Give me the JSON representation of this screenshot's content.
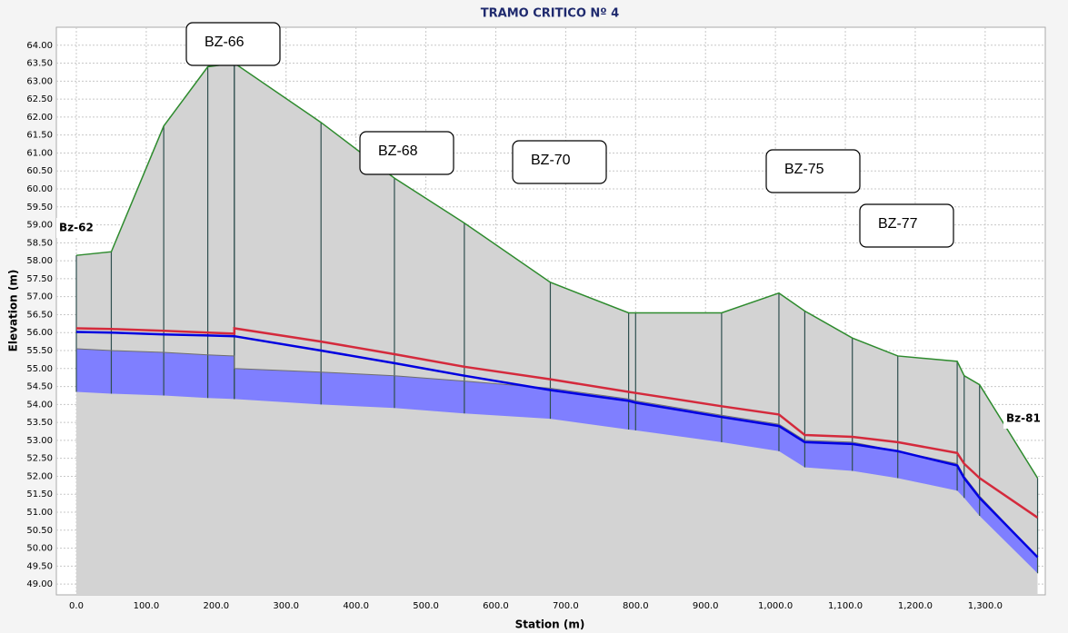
{
  "chart_data": {
    "type": "profile",
    "title": "TRAMO CRITICO Nº 4",
    "xlabel": "Station (m)",
    "ylabel": "Elevation (m)",
    "x": [
      0,
      50,
      125,
      188,
      226,
      226,
      350,
      455,
      555,
      678,
      790,
      800,
      923,
      1005,
      1042,
      1110,
      1175,
      1260,
      1270,
      1292,
      1375
    ],
    "series": [
      {
        "color": "#2e8b2e",
        "values": [
          58.15,
          58.25,
          61.75,
          63.4,
          63.5,
          63.5,
          61.85,
          60.3,
          59.05,
          57.4,
          56.55,
          56.55,
          56.55,
          57.1,
          56.6,
          55.85,
          55.35,
          55.2,
          54.8,
          54.55,
          51.95
        ]
      },
      {
        "color": "#6e6e6e",
        "values": [
          55.55,
          55.5,
          55.45,
          55.38,
          55.35,
          55.0,
          54.9,
          54.8,
          54.65,
          54.45,
          54.15,
          54.1,
          53.7,
          53.45,
          53.0,
          52.95,
          52.7,
          52.35,
          52.0,
          51.45,
          49.75
        ]
      },
      {
        "color": "#7f7fff",
        "values": [
          54.35,
          54.3,
          54.25,
          54.18,
          54.15,
          54.15,
          54.0,
          53.9,
          53.75,
          53.6,
          53.3,
          53.28,
          52.95,
          52.7,
          52.25,
          52.15,
          51.95,
          51.6,
          51.4,
          50.9,
          49.3
        ]
      },
      {
        "color": "#d42a3c",
        "values": [
          56.12,
          56.1,
          56.05,
          56.0,
          55.97,
          56.12,
          55.75,
          55.4,
          55.05,
          54.7,
          54.35,
          54.32,
          53.95,
          53.72,
          53.15,
          53.1,
          52.95,
          52.65,
          52.35,
          51.95,
          50.85
        ]
      },
      {
        "color": "#0000e0",
        "values": [
          56.02,
          56.0,
          55.95,
          55.92,
          55.9,
          55.9,
          55.5,
          55.15,
          54.8,
          54.4,
          54.1,
          54.05,
          53.65,
          53.4,
          52.95,
          52.9,
          52.7,
          52.3,
          51.95,
          51.4,
          49.75
        ]
      }
    ],
    "area_color": "#d3d3d3",
    "annotations": [
      "BZ-66",
      "BZ-68",
      "BZ-70",
      "BZ-75",
      "BZ-77",
      "Bz-62",
      "Bz-81"
    ],
    "xlim": [
      -28.6,
      1386
    ],
    "ylim": [
      48.7,
      64.5
    ],
    "xticks": [
      {
        "value": 0,
        "label": "0.0"
      },
      {
        "value": 100,
        "label": "100.0"
      },
      {
        "value": 200,
        "label": "200.0"
      },
      {
        "value": 300,
        "label": "300.0"
      },
      {
        "value": 400,
        "label": "400.0"
      },
      {
        "value": 500,
        "label": "500.0"
      },
      {
        "value": 600,
        "label": "600.0"
      },
      {
        "value": 700,
        "label": "700.0"
      },
      {
        "value": 800,
        "label": "800.0"
      },
      {
        "value": 900,
        "label": "900.0"
      },
      {
        "value": 1000,
        "label": "1,000.0"
      },
      {
        "value": 1100,
        "label": "1,100.0"
      },
      {
        "value": 1200,
        "label": "1,200.0"
      },
      {
        "value": 1300,
        "label": "1,300.0"
      }
    ],
    "yticks": [
      {
        "value": 49,
        "label": "49.00"
      },
      {
        "value": 49.5,
        "label": "49.50"
      },
      {
        "value": 50,
        "label": "50.00"
      },
      {
        "value": 50.5,
        "label": "50.50"
      },
      {
        "value": 51,
        "label": "51.00"
      },
      {
        "value": 51.5,
        "label": "51.50"
      },
      {
        "value": 52,
        "label": "52.00"
      },
      {
        "value": 52.5,
        "label": "52.50"
      },
      {
        "value": 53,
        "label": "53.00"
      },
      {
        "value": 53.5,
        "label": "53.50"
      },
      {
        "value": 54,
        "label": "54.00"
      },
      {
        "value": 54.5,
        "label": "54.50"
      },
      {
        "value": 55,
        "label": "55.00"
      },
      {
        "value": 55.5,
        "label": "55.50"
      },
      {
        "value": 56,
        "label": "56.00"
      },
      {
        "value": 56.5,
        "label": "56.50"
      },
      {
        "value": 57,
        "label": "57.00"
      },
      {
        "value": 57.5,
        "label": "57.50"
      },
      {
        "value": 58,
        "label": "58.00"
      },
      {
        "value": 58.5,
        "label": "58.50"
      },
      {
        "value": 59,
        "label": "59.00"
      },
      {
        "value": 59.5,
        "label": "59.50"
      },
      {
        "value": 60,
        "label": "60.00"
      },
      {
        "value": 60.5,
        "label": "60.50"
      },
      {
        "value": 61,
        "label": "61.00"
      },
      {
        "value": 61.5,
        "label": "61.50"
      },
      {
        "value": 62,
        "label": "62.00"
      },
      {
        "value": 62.5,
        "label": "62.50"
      },
      {
        "value": 63,
        "label": "63.00"
      },
      {
        "value": 63.5,
        "label": "63.50"
      },
      {
        "value": 64,
        "label": "64.00"
      }
    ],
    "grid": true
  }
}
